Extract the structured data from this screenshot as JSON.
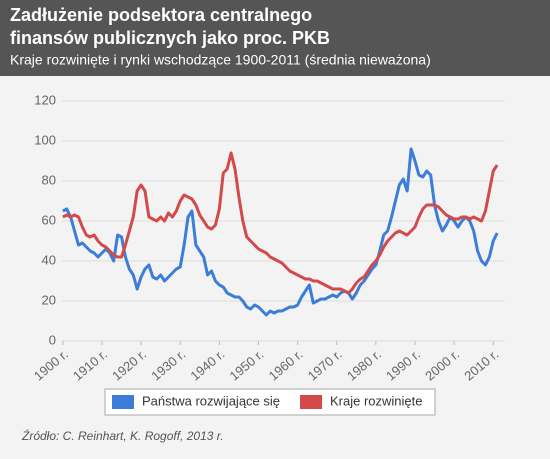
{
  "chart_data": {
    "type": "line",
    "title": "Zadłużenie podsektora centralnego",
    "title_line2": "finansów publicznych jako proc. PKB",
    "subtitle": "Kraje rozwinięte i rynki wschodzące 1900-2011 (średnia nieważona)",
    "source": "Źródło: C. Reinhart, K. Rogoff, 2013 r.",
    "x": [
      1900,
      1901,
      1902,
      1903,
      1904,
      1905,
      1906,
      1907,
      1908,
      1909,
      1910,
      1911,
      1912,
      1913,
      1914,
      1915,
      1916,
      1917,
      1918,
      1919,
      1920,
      1921,
      1922,
      1923,
      1924,
      1925,
      1926,
      1927,
      1928,
      1929,
      1930,
      1931,
      1932,
      1933,
      1934,
      1935,
      1936,
      1937,
      1938,
      1939,
      1940,
      1941,
      1942,
      1943,
      1944,
      1945,
      1946,
      1947,
      1948,
      1949,
      1950,
      1951,
      1952,
      1953,
      1954,
      1955,
      1956,
      1957,
      1958,
      1959,
      1960,
      1961,
      1962,
      1963,
      1964,
      1965,
      1966,
      1967,
      1968,
      1969,
      1970,
      1971,
      1972,
      1973,
      1974,
      1975,
      1976,
      1977,
      1978,
      1979,
      1980,
      1981,
      1982,
      1983,
      1984,
      1985,
      1986,
      1987,
      1988,
      1989,
      1990,
      1991,
      1992,
      1993,
      1994,
      1995,
      1996,
      1997,
      1998,
      1999,
      2000,
      2001,
      2002,
      2003,
      2004,
      2005,
      2006,
      2007,
      2008,
      2009,
      2010,
      2011
    ],
    "series": [
      {
        "name": "Państwa rozwijające się",
        "color": "#3b7dd8",
        "values": [
          65,
          66,
          62,
          55,
          48,
          49,
          47,
          45,
          44,
          42,
          44,
          46,
          44,
          40,
          53,
          52,
          42,
          36,
          33,
          26,
          32,
          36,
          38,
          32,
          31,
          33,
          30,
          32,
          34,
          36,
          37,
          48,
          62,
          65,
          48,
          45,
          42,
          33,
          35,
          30,
          28,
          27,
          24,
          23,
          22,
          22,
          20,
          17,
          16,
          18,
          17,
          15,
          13,
          15,
          14,
          15,
          15,
          16,
          17,
          17,
          18,
          22,
          25,
          28,
          19,
          20,
          21,
          21,
          22,
          23,
          22,
          24,
          25,
          24,
          21,
          24,
          28,
          30,
          33,
          36,
          38,
          45,
          53,
          55,
          62,
          70,
          78,
          81,
          75,
          96,
          90,
          83,
          82,
          85,
          83,
          68,
          60,
          55,
          58,
          62,
          60,
          57,
          60,
          62,
          60,
          55,
          45,
          40,
          38,
          42,
          50,
          54
        ]
      },
      {
        "name": "Kraje rozwinięte",
        "color": "#d34a4a",
        "values": [
          62,
          63,
          62,
          63,
          62,
          57,
          53,
          52,
          53,
          50,
          48,
          47,
          45,
          43,
          42,
          42,
          48,
          55,
          62,
          75,
          78,
          75,
          62,
          61,
          60,
          62,
          60,
          64,
          62,
          65,
          70,
          73,
          72,
          71,
          68,
          63,
          60,
          57,
          56,
          58,
          66,
          84,
          86,
          94,
          86,
          72,
          60,
          52,
          50,
          48,
          46,
          45,
          44,
          42,
          41,
          40,
          39,
          37,
          35,
          34,
          33,
          32,
          31,
          31,
          30,
          30,
          29,
          28,
          27,
          26,
          26,
          26,
          25,
          24,
          26,
          29,
          31,
          32,
          35,
          38,
          40,
          43,
          47,
          50,
          52,
          54,
          55,
          54,
          53,
          55,
          57,
          62,
          66,
          68,
          68,
          68,
          67,
          65,
          63,
          62,
          61,
          61,
          62,
          62,
          61,
          62,
          61,
          60,
          65,
          75,
          85,
          88
        ]
      }
    ],
    "xlim": [
      1898,
      2013
    ],
    "xticks": [
      {
        "value": 1900,
        "label": "1900 r."
      },
      {
        "value": 1910,
        "label": "1910 r."
      },
      {
        "value": 1920,
        "label": "1920 r."
      },
      {
        "value": 1930,
        "label": "1930 r."
      },
      {
        "value": 1940,
        "label": "1940 r."
      },
      {
        "value": 1950,
        "label": "1950 r."
      },
      {
        "value": 1960,
        "label": "1960 r."
      },
      {
        "value": 1970,
        "label": "1970 r."
      },
      {
        "value": 1980,
        "label": "1980 r."
      },
      {
        "value": 1990,
        "label": "1990 r."
      },
      {
        "value": 2000,
        "label": "2000 r."
      },
      {
        "value": 2010,
        "label": "2010 r."
      }
    ],
    "ylim": [
      0,
      120
    ],
    "yticks": [
      0,
      20,
      40,
      60,
      80,
      100,
      120
    ],
    "grid": true,
    "legend": "bottom"
  }
}
